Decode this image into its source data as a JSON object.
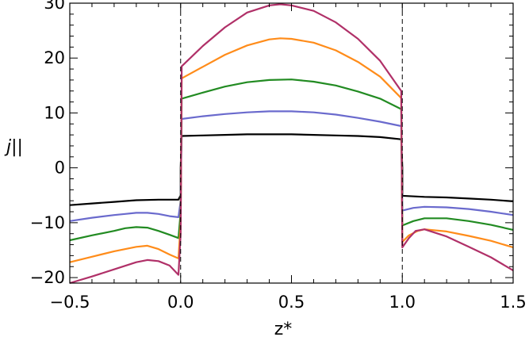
{
  "chart_data": {
    "type": "line",
    "title": "",
    "xlabel": "z*",
    "ylabel": "j||",
    "xlim": [
      -0.5,
      1.5
    ],
    "ylim": [
      -21,
      30
    ],
    "grid": false,
    "legend": "none",
    "xticks": [
      {
        "value": -0.5,
        "label": "−0.5"
      },
      {
        "value": 0.0,
        "label": "0.0"
      },
      {
        "value": 0.5,
        "label": "0.5"
      },
      {
        "value": 1.0,
        "label": "1.0"
      },
      {
        "value": 1.5,
        "label": "1.5"
      }
    ],
    "yticks": [
      {
        "value": -20,
        "label": "−20"
      },
      {
        "value": -10,
        "label": "−10"
      },
      {
        "value": 0,
        "label": "0"
      },
      {
        "value": 10,
        "label": "10"
      },
      {
        "value": 20,
        "label": "20"
      },
      {
        "value": 30,
        "label": "30"
      }
    ],
    "vlines": [
      0.0,
      1.0
    ],
    "series": [
      {
        "color": "#000000",
        "segments": [
          [
            [
              -0.5,
              -6.8
            ],
            [
              -0.4,
              -6.5
            ],
            [
              -0.3,
              -6.2
            ],
            [
              -0.2,
              -5.9
            ],
            [
              -0.1,
              -5.8
            ],
            [
              -0.01,
              -5.8
            ],
            [
              0.0,
              -5.0
            ],
            [
              0.0,
              0.0
            ],
            [
              0.005,
              5.8
            ],
            [
              0.1,
              5.9
            ],
            [
              0.2,
              6.0
            ],
            [
              0.3,
              6.1
            ],
            [
              0.4,
              6.1
            ],
            [
              0.5,
              6.1
            ],
            [
              0.6,
              6.0
            ],
            [
              0.7,
              5.9
            ],
            [
              0.8,
              5.8
            ],
            [
              0.9,
              5.6
            ],
            [
              0.995,
              5.2
            ],
            [
              1.0,
              0.0
            ],
            [
              1.0,
              -5.1
            ],
            [
              1.1,
              -5.3
            ],
            [
              1.2,
              -5.4
            ],
            [
              1.3,
              -5.6
            ],
            [
              1.4,
              -5.8
            ],
            [
              1.5,
              -6.1
            ]
          ]
        ]
      },
      {
        "color": "#6a6acd",
        "segments": [
          [
            [
              -0.5,
              -9.7
            ],
            [
              -0.4,
              -9.1
            ],
            [
              -0.3,
              -8.6
            ],
            [
              -0.25,
              -8.4
            ],
            [
              -0.2,
              -8.2
            ],
            [
              -0.15,
              -8.2
            ],
            [
              -0.1,
              -8.4
            ],
            [
              -0.05,
              -8.8
            ],
            [
              -0.01,
              -9.0
            ],
            [
              0.0,
              -6.0
            ],
            [
              0.005,
              8.9
            ],
            [
              0.1,
              9.4
            ],
            [
              0.2,
              9.8
            ],
            [
              0.3,
              10.1
            ],
            [
              0.4,
              10.3
            ],
            [
              0.5,
              10.3
            ],
            [
              0.6,
              10.1
            ],
            [
              0.7,
              9.7
            ],
            [
              0.8,
              9.1
            ],
            [
              0.9,
              8.4
            ],
            [
              0.995,
              7.6
            ],
            [
              1.0,
              -7.8
            ],
            [
              1.05,
              -7.3
            ],
            [
              1.1,
              -7.1
            ],
            [
              1.2,
              -7.2
            ],
            [
              1.3,
              -7.5
            ],
            [
              1.4,
              -8.0
            ],
            [
              1.5,
              -8.6
            ]
          ]
        ]
      },
      {
        "color": "#228b22",
        "segments": [
          [
            [
              -0.5,
              -13.2
            ],
            [
              -0.4,
              -12.3
            ],
            [
              -0.3,
              -11.5
            ],
            [
              -0.25,
              -11.0
            ],
            [
              -0.2,
              -10.8
            ],
            [
              -0.15,
              -10.9
            ],
            [
              -0.1,
              -11.5
            ],
            [
              -0.05,
              -12.2
            ],
            [
              -0.01,
              -12.8
            ],
            [
              0.0,
              -8.0
            ],
            [
              0.005,
              12.6
            ],
            [
              0.1,
              13.7
            ],
            [
              0.2,
              14.8
            ],
            [
              0.3,
              15.6
            ],
            [
              0.4,
              16.0
            ],
            [
              0.5,
              16.1
            ],
            [
              0.6,
              15.7
            ],
            [
              0.7,
              15.0
            ],
            [
              0.8,
              13.9
            ],
            [
              0.9,
              12.6
            ],
            [
              0.995,
              10.7
            ],
            [
              1.0,
              -10.5
            ],
            [
              1.05,
              -9.7
            ],
            [
              1.1,
              -9.2
            ],
            [
              1.2,
              -9.2
            ],
            [
              1.3,
              -9.7
            ],
            [
              1.4,
              -10.4
            ],
            [
              1.5,
              -11.3
            ]
          ]
        ]
      },
      {
        "color": "#ff8c1a",
        "segments": [
          [
            [
              -0.5,
              -17.2
            ],
            [
              -0.4,
              -16.2
            ],
            [
              -0.3,
              -15.2
            ],
            [
              -0.2,
              -14.4
            ],
            [
              -0.15,
              -14.2
            ],
            [
              -0.1,
              -14.8
            ],
            [
              -0.05,
              -15.8
            ],
            [
              -0.01,
              -16.5
            ],
            [
              0.0,
              -10.0
            ],
            [
              0.005,
              16.3
            ],
            [
              0.1,
              18.4
            ],
            [
              0.2,
              20.6
            ],
            [
              0.3,
              22.3
            ],
            [
              0.4,
              23.4
            ],
            [
              0.45,
              23.6
            ],
            [
              0.5,
              23.5
            ],
            [
              0.6,
              22.8
            ],
            [
              0.7,
              21.4
            ],
            [
              0.8,
              19.3
            ],
            [
              0.9,
              16.6
            ],
            [
              0.995,
              12.7
            ],
            [
              1.0,
              -13.5
            ],
            [
              1.03,
              -12.3
            ],
            [
              1.07,
              -11.5
            ],
            [
              1.1,
              -11.2
            ],
            [
              1.2,
              -11.6
            ],
            [
              1.3,
              -12.4
            ],
            [
              1.4,
              -13.3
            ],
            [
              1.5,
              -14.5
            ]
          ]
        ]
      },
      {
        "color": "#b03068",
        "segments": [
          [
            [
              -0.5,
              -21.0
            ],
            [
              -0.4,
              -19.8
            ],
            [
              -0.3,
              -18.5
            ],
            [
              -0.2,
              -17.2
            ],
            [
              -0.15,
              -16.8
            ],
            [
              -0.1,
              -17.0
            ],
            [
              -0.05,
              -17.8
            ],
            [
              -0.01,
              -19.5
            ],
            [
              0.0,
              -12.0
            ],
            [
              0.005,
              18.5
            ],
            [
              0.1,
              22.2
            ],
            [
              0.2,
              25.6
            ],
            [
              0.3,
              28.3
            ],
            [
              0.4,
              29.6
            ],
            [
              0.45,
              29.8
            ],
            [
              0.5,
              29.6
            ],
            [
              0.6,
              28.6
            ],
            [
              0.7,
              26.5
            ],
            [
              0.8,
              23.5
            ],
            [
              0.9,
              19.5
            ],
            [
              0.995,
              14.0
            ],
            [
              1.0,
              -14.5
            ],
            [
              1.03,
              -12.8
            ],
            [
              1.06,
              -11.5
            ],
            [
              1.1,
              -11.2
            ],
            [
              1.2,
              -12.5
            ],
            [
              1.3,
              -14.4
            ],
            [
              1.4,
              -16.3
            ],
            [
              1.5,
              -18.7
            ]
          ]
        ]
      }
    ]
  }
}
